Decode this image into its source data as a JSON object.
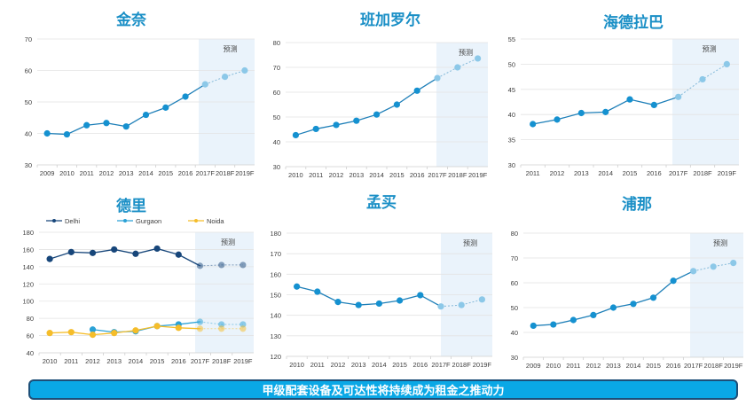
{
  "banner": {
    "text": "甲级配套设备及可达性将持续成为租金之推动力"
  },
  "colors": {
    "title": "#1a8fc6",
    "line": "#1e7fb8",
    "marker": "#1591d0",
    "forecast_marker": "#8cc8e8",
    "forecast_shade": "#eaf3fb",
    "grid": "#e3e3e3",
    "delhi": "#17467a",
    "gurgaon": "#2aa1d6",
    "noida": "#f5bd2a",
    "banner_bg": "#0aa8e6",
    "banner_border": "#1d4f78"
  },
  "chart_data": [
    {
      "id": "chennai",
      "type": "line",
      "title": "金奈",
      "forecast_label": "预测",
      "categories": [
        "2009",
        "2010",
        "2011",
        "2012",
        "2013",
        "2014",
        "2015",
        "2016",
        "2017F",
        "2018F",
        "2019F"
      ],
      "forecast_from_index": 8,
      "ylim": [
        30,
        70
      ],
      "yticks": [
        30,
        40,
        50,
        60,
        70
      ],
      "grid": true,
      "series": [
        {
          "name": "金奈",
          "values": [
            40,
            39.7,
            42.6,
            43.3,
            42.2,
            45.9,
            48.2,
            51.7,
            55.6,
            58,
            60
          ]
        }
      ],
      "xlabel": "",
      "ylabel": ""
    },
    {
      "id": "bangalore",
      "type": "line",
      "title": "班加罗尔",
      "forecast_label": "预测",
      "categories": [
        "2010",
        "2011",
        "2012",
        "2013",
        "2014",
        "2015",
        "2016",
        "2017F",
        "2018F",
        "2019F"
      ],
      "forecast_from_index": 7,
      "ylim": [
        30,
        80
      ],
      "yticks": [
        30,
        40,
        50,
        60,
        70,
        80
      ],
      "grid": true,
      "series": [
        {
          "name": "班加罗尔",
          "values": [
            42.7,
            45.2,
            46.8,
            48.5,
            51,
            55,
            60.6,
            65.7,
            70,
            73.6
          ]
        }
      ],
      "xlabel": "",
      "ylabel": ""
    },
    {
      "id": "hyderabad",
      "type": "line",
      "title": "海德拉巴",
      "forecast_label": "预测",
      "categories": [
        "2011",
        "2012",
        "2013",
        "2014",
        "2015",
        "2016",
        "2017F",
        "2018F",
        "2019F"
      ],
      "forecast_from_index": 6,
      "ylim": [
        30,
        55
      ],
      "yticks": [
        30,
        35,
        40,
        45,
        50,
        55
      ],
      "grid": true,
      "series": [
        {
          "name": "海德拉巴",
          "values": [
            38.1,
            39,
            40.3,
            40.5,
            43,
            41.9,
            43.5,
            47,
            50
          ]
        }
      ],
      "xlabel": "",
      "ylabel": ""
    },
    {
      "id": "delhi",
      "type": "line",
      "title": "德里",
      "forecast_label": "预测",
      "legend": "top",
      "categories": [
        "2010",
        "2011",
        "2012",
        "2013",
        "2014",
        "2015",
        "2016",
        "2017F",
        "2018F",
        "2019F"
      ],
      "forecast_from_index": 7,
      "ylim": [
        40,
        180
      ],
      "yticks": [
        40,
        60,
        80,
        100,
        120,
        140,
        160,
        180
      ],
      "grid": true,
      "series": [
        {
          "name": "Delhi",
          "color_key": "delhi",
          "values": [
            149,
            157,
            156,
            160,
            155,
            161,
            154,
            141,
            142,
            142
          ]
        },
        {
          "name": "Gurgaon",
          "color_key": "gurgaon",
          "values": [
            null,
            null,
            67,
            64,
            65,
            71,
            73,
            76,
            73,
            73
          ]
        },
        {
          "name": "Noida",
          "color_key": "noida",
          "values": [
            63,
            64,
            61,
            63,
            66,
            71,
            69,
            68,
            68,
            68
          ]
        }
      ],
      "xlabel": "",
      "ylabel": ""
    },
    {
      "id": "mumbai",
      "type": "line",
      "title": "孟买",
      "forecast_label": "预测",
      "categories": [
        "2010",
        "2011",
        "2012",
        "2013",
        "2014",
        "2015",
        "2016",
        "2017F",
        "2018F",
        "2019F"
      ],
      "forecast_from_index": 7,
      "ylim": [
        120,
        180
      ],
      "yticks": [
        120,
        130,
        140,
        150,
        160,
        170,
        180
      ],
      "grid": true,
      "series": [
        {
          "name": "孟买",
          "values": [
            154,
            151.5,
            146.5,
            145,
            145.7,
            147.2,
            149.8,
            144.3,
            145,
            147.7
          ]
        }
      ],
      "xlabel": "",
      "ylabel": ""
    },
    {
      "id": "pune",
      "type": "line",
      "title": "浦那",
      "forecast_label": "预测",
      "categories": [
        "2009",
        "2010",
        "2011",
        "2012",
        "2013",
        "2014",
        "2015",
        "2016",
        "2017F",
        "2018F",
        "2019F"
      ],
      "forecast_from_index": 8,
      "ylim": [
        30,
        80
      ],
      "yticks": [
        30,
        40,
        50,
        60,
        70,
        80
      ],
      "grid": true,
      "series": [
        {
          "name": "浦那",
          "values": [
            42.7,
            43.2,
            45,
            47,
            50,
            51.5,
            54,
            60.8,
            64.7,
            66.5,
            68
          ]
        }
      ],
      "xlabel": "",
      "ylabel": ""
    }
  ]
}
